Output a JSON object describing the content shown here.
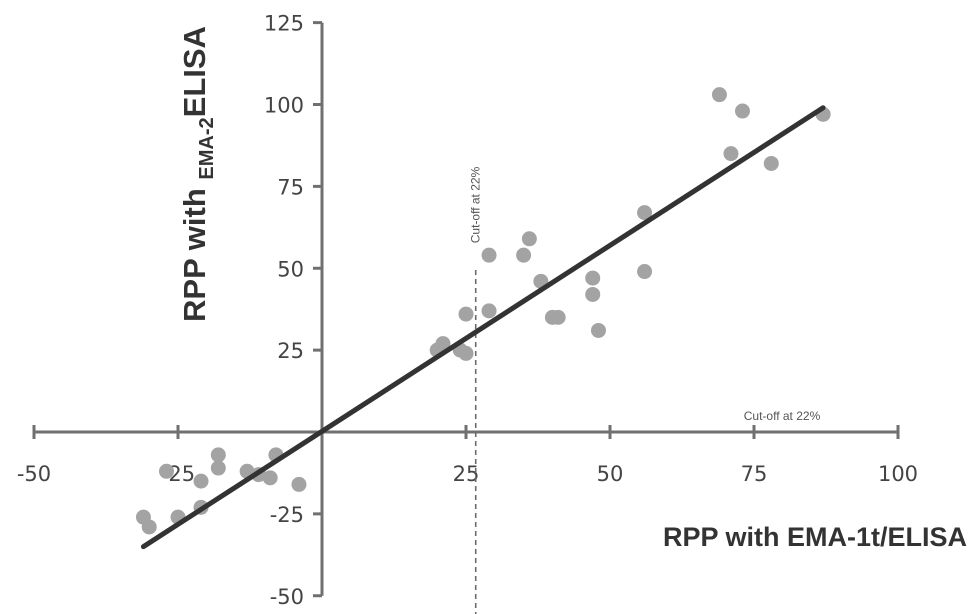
{
  "chart_data": {
    "type": "scatter",
    "x_axis": {
      "label": "RPP with EMA-1t/ELISA",
      "range": [
        -50,
        100
      ],
      "ticks": [
        -50,
        -25,
        25,
        50,
        75,
        100
      ]
    },
    "y_axis": {
      "label_main": "RPP with ",
      "label_sub": "EMA-2",
      "label_end": "ELISA",
      "range": [
        -50,
        125
      ],
      "ticks": [
        125,
        100,
        75,
        50,
        25,
        -25,
        -50
      ]
    },
    "annotations": {
      "vertical_cutoff": {
        "value": 22,
        "label": "Cut-off at 22%"
      },
      "horizontal_cutoff_label": "Cut-off at 22%"
    },
    "regression_line": {
      "from": [
        -31,
        -35
      ],
      "to": [
        87,
        99
      ]
    },
    "points": [
      [
        -31,
        -26
      ],
      [
        -30,
        -29
      ],
      [
        -27,
        -12
      ],
      [
        -25,
        -26
      ],
      [
        -21,
        -23
      ],
      [
        -21,
        -15
      ],
      [
        -18,
        -11
      ],
      [
        -18,
        -7
      ],
      [
        -13,
        -12
      ],
      [
        -11,
        -13
      ],
      [
        -9,
        -14
      ],
      [
        -8,
        -7
      ],
      [
        -4,
        -16
      ],
      [
        20,
        25
      ],
      [
        21,
        27
      ],
      [
        24,
        25
      ],
      [
        25,
        36
      ],
      [
        25,
        24
      ],
      [
        29,
        54
      ],
      [
        29,
        37
      ],
      [
        35,
        54
      ],
      [
        36,
        59
      ],
      [
        38,
        46
      ],
      [
        40,
        35
      ],
      [
        41,
        35
      ],
      [
        47,
        47
      ],
      [
        47,
        42
      ],
      [
        48,
        31
      ],
      [
        56,
        67
      ],
      [
        56,
        49
      ],
      [
        69,
        103
      ],
      [
        71,
        85
      ],
      [
        73,
        98
      ],
      [
        78,
        82
      ],
      [
        87,
        97
      ]
    ]
  }
}
